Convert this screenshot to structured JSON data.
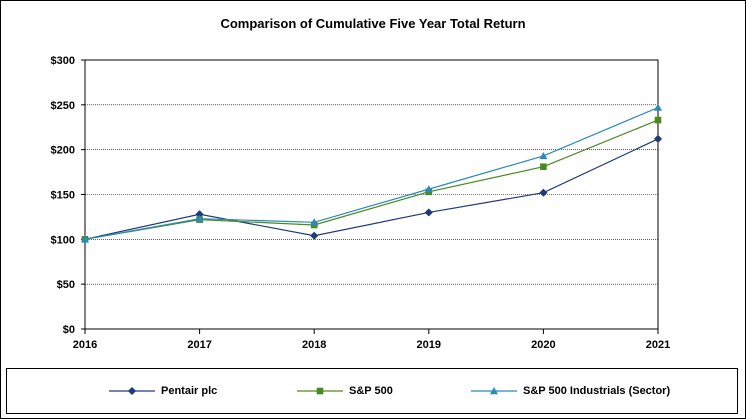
{
  "chart_data": {
    "type": "line",
    "title": "Comparison of Cumulative Five Year Total Return",
    "x": [
      "2016",
      "2017",
      "2018",
      "2019",
      "2020",
      "2021"
    ],
    "y_ticks": [
      "$0",
      "$50",
      "$100",
      "$150",
      "$200",
      "$250",
      "$300"
    ],
    "ylim": [
      0,
      300
    ],
    "grid": "horizontal",
    "legend_position": "bottom",
    "series": [
      {
        "name": "Pentair plc",
        "values": [
          100,
          128,
          104,
          130,
          152,
          212
        ],
        "color": "#1f3a7a",
        "marker": "diamond"
      },
      {
        "name": "S&P 500",
        "values": [
          100,
          122,
          116,
          153,
          181,
          233
        ],
        "color": "#4a8a1e",
        "marker": "square"
      },
      {
        "name": "S&P 500 Industrials (Sector)",
        "values": [
          100,
          123,
          119,
          156,
          193,
          247
        ],
        "color": "#2a8ab8",
        "marker": "triangle"
      }
    ]
  }
}
